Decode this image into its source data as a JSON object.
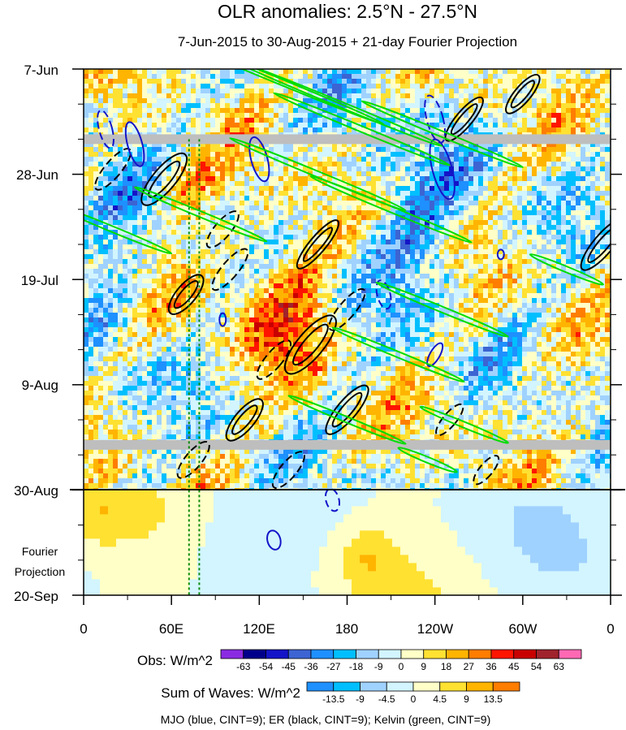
{
  "chart_data": {
    "type": "heatmap",
    "title": "OLR anomalies: 2.5°N - 27.5°N",
    "subtitle": "7-Jun-2015 to 30-Aug-2015 + 21-day Fourier Projection",
    "x_ticks": [
      "0",
      "60E",
      "120E",
      "180",
      "120W",
      "60W",
      "0"
    ],
    "x_tick_lon": [
      0,
      60,
      120,
      180,
      240,
      300,
      360
    ],
    "xlim": [
      0,
      360
    ],
    "y_ticks": [
      "7-Jun",
      "28-Jun",
      "19-Jul",
      "9-Aug",
      "30-Aug",
      "20-Sep"
    ],
    "y_tick_day": [
      0,
      21,
      42,
      63,
      84,
      105
    ],
    "ylim_days": [
      0,
      105
    ],
    "observation_end_day": 84,
    "projection_label": [
      "Fourier",
      "Projection"
    ],
    "reference_longitudes": [
      72,
      79
    ],
    "missing_data_days": [
      14,
      75
    ],
    "obs_colorbar": {
      "label": "Obs: W/m^2",
      "levels": [
        "-63",
        "-54",
        "-45",
        "-36",
        "-27",
        "-18",
        "-9",
        "0",
        "9",
        "18",
        "27",
        "36",
        "45",
        "54",
        "63"
      ],
      "colors": [
        "#8a2be2",
        "#00008b",
        "#1414c8",
        "#3c64d2",
        "#1e90ff",
        "#00bfff",
        "#a0d2ff",
        "#d2f5ff",
        "#ffffc8",
        "#ffe132",
        "#ffb400",
        "#ff7d00",
        "#ff1400",
        "#c80000",
        "#a0232d",
        "#ff69b4"
      ]
    },
    "waves_colorbar": {
      "label": "Sum of Waves: W/m^2",
      "levels": [
        "-13.5",
        "-9",
        "-4.5",
        "0",
        "4.5",
        "9",
        "13.5"
      ],
      "colors": [
        "#1e90ff",
        "#00bfff",
        "#a0d2ff",
        "#d2f5ff",
        "#ffffc8",
        "#ffe132",
        "#ffb400",
        "#ff7d00"
      ]
    },
    "footnote": "MJO (blue, CINT=9); ER (black, CINT=9); Kelvin (green, CINT=9)",
    "contours": {
      "mjo_color": "#1414c8",
      "er_color": "#000000",
      "kelvin_color": "#00dc00"
    }
  }
}
